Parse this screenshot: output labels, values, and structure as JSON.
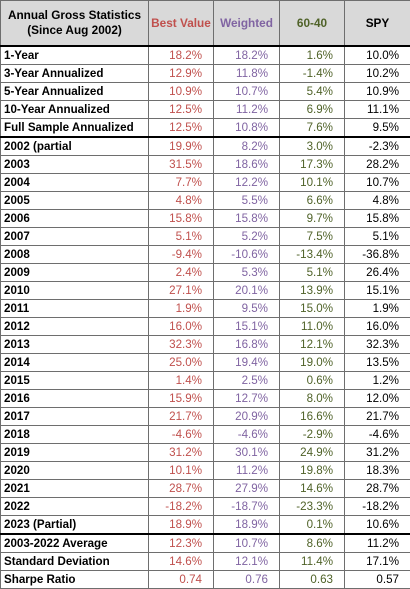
{
  "table": {
    "headers": {
      "label": "Annual Gross Statistics (Since Aug 2002)",
      "best": "Best Value",
      "weighted": "Weighted",
      "sixty_forty": "60-40",
      "spy": "SPY"
    },
    "summary_rows": [
      {
        "label": "1-Year",
        "best": "18.2%",
        "weighted": "18.2%",
        "sixty_forty": "1.6%",
        "spy": "10.0%"
      },
      {
        "label": "3-Year Annualized",
        "best": "12.9%",
        "weighted": "11.8%",
        "sixty_forty": "-1.4%",
        "spy": "10.2%"
      },
      {
        "label": "5-Year Annualized",
        "best": "10.9%",
        "weighted": "10.7%",
        "sixty_forty": "5.4%",
        "spy": "10.9%"
      },
      {
        "label": "10-Year Annualized",
        "best": "12.5%",
        "weighted": "11.2%",
        "sixty_forty": "6.9%",
        "spy": "11.1%"
      },
      {
        "label": "Full Sample Annualized",
        "best": "12.5%",
        "weighted": "10.8%",
        "sixty_forty": "7.6%",
        "spy": "9.5%"
      }
    ],
    "year_rows": [
      {
        "label": "2002 (partial",
        "best": "19.9%",
        "weighted": "8.2%",
        "sixty_forty": "3.0%",
        "spy": "-2.3%"
      },
      {
        "label": "2003",
        "best": "31.5%",
        "weighted": "18.6%",
        "sixty_forty": "17.3%",
        "spy": "28.2%"
      },
      {
        "label": "2004",
        "best": "7.7%",
        "weighted": "12.2%",
        "sixty_forty": "10.1%",
        "spy": "10.7%"
      },
      {
        "label": "2005",
        "best": "4.8%",
        "weighted": "5.5%",
        "sixty_forty": "6.6%",
        "spy": "4.8%"
      },
      {
        "label": "2006",
        "best": "15.8%",
        "weighted": "15.8%",
        "sixty_forty": "9.7%",
        "spy": "15.8%"
      },
      {
        "label": "2007",
        "best": "5.1%",
        "weighted": "5.2%",
        "sixty_forty": "7.5%",
        "spy": "5.1%"
      },
      {
        "label": "2008",
        "best": "-9.4%",
        "weighted": "-10.6%",
        "sixty_forty": "-13.4%",
        "spy": "-36.8%"
      },
      {
        "label": "2009",
        "best": "2.4%",
        "weighted": "5.3%",
        "sixty_forty": "5.1%",
        "spy": "26.4%"
      },
      {
        "label": "2010",
        "best": "27.1%",
        "weighted": "20.1%",
        "sixty_forty": "13.9%",
        "spy": "15.1%"
      },
      {
        "label": "2011",
        "best": "1.9%",
        "weighted": "9.5%",
        "sixty_forty": "15.0%",
        "spy": "1.9%"
      },
      {
        "label": "2012",
        "best": "16.0%",
        "weighted": "15.1%",
        "sixty_forty": "11.0%",
        "spy": "16.0%"
      },
      {
        "label": "2013",
        "best": "32.3%",
        "weighted": "16.8%",
        "sixty_forty": "12.1%",
        "spy": "32.3%"
      },
      {
        "label": "2014",
        "best": "25.0%",
        "weighted": "19.4%",
        "sixty_forty": "19.0%",
        "spy": "13.5%"
      },
      {
        "label": "2015",
        "best": "1.4%",
        "weighted": "2.5%",
        "sixty_forty": "0.6%",
        "spy": "1.2%"
      },
      {
        "label": "2016",
        "best": "15.9%",
        "weighted": "12.7%",
        "sixty_forty": "8.0%",
        "spy": "12.0%"
      },
      {
        "label": "2017",
        "best": "21.7%",
        "weighted": "20.9%",
        "sixty_forty": "16.6%",
        "spy": "21.7%"
      },
      {
        "label": "2018",
        "best": "-4.6%",
        "weighted": "-4.6%",
        "sixty_forty": "-2.9%",
        "spy": "-4.6%"
      },
      {
        "label": "2019",
        "best": "31.2%",
        "weighted": "30.1%",
        "sixty_forty": "24.9%",
        "spy": "31.2%"
      },
      {
        "label": "2020",
        "best": "10.1%",
        "weighted": "11.2%",
        "sixty_forty": "19.8%",
        "spy": "18.3%"
      },
      {
        "label": "2021",
        "best": "28.7%",
        "weighted": "27.9%",
        "sixty_forty": "14.6%",
        "spy": "28.7%"
      },
      {
        "label": "2022",
        "best": "-18.2%",
        "weighted": "-18.7%",
        "sixty_forty": "-23.3%",
        "spy": "-18.2%"
      },
      {
        "label": "2023 (Partial)",
        "best": "18.9%",
        "weighted": "18.9%",
        "sixty_forty": "0.1%",
        "spy": "10.6%"
      }
    ],
    "stat_rows": [
      {
        "label": "2003-2022 Average",
        "best": "12.3%",
        "weighted": "10.7%",
        "sixty_forty": "8.6%",
        "spy": "11.2%"
      },
      {
        "label": "Standard Deviation",
        "best": "14.6%",
        "weighted": "12.1%",
        "sixty_forty": "11.4%",
        "spy": "17.1%"
      },
      {
        "label": "Sharpe Ratio",
        "best": "0.74",
        "weighted": "0.76",
        "sixty_forty": "0.63",
        "spy": "0.57"
      }
    ]
  },
  "colors": {
    "best": "#c0504d",
    "weighted": "#8064a2",
    "sixty_forty": "#4f6228",
    "spy": "#000000",
    "header_bg": "#d9d9d9"
  }
}
